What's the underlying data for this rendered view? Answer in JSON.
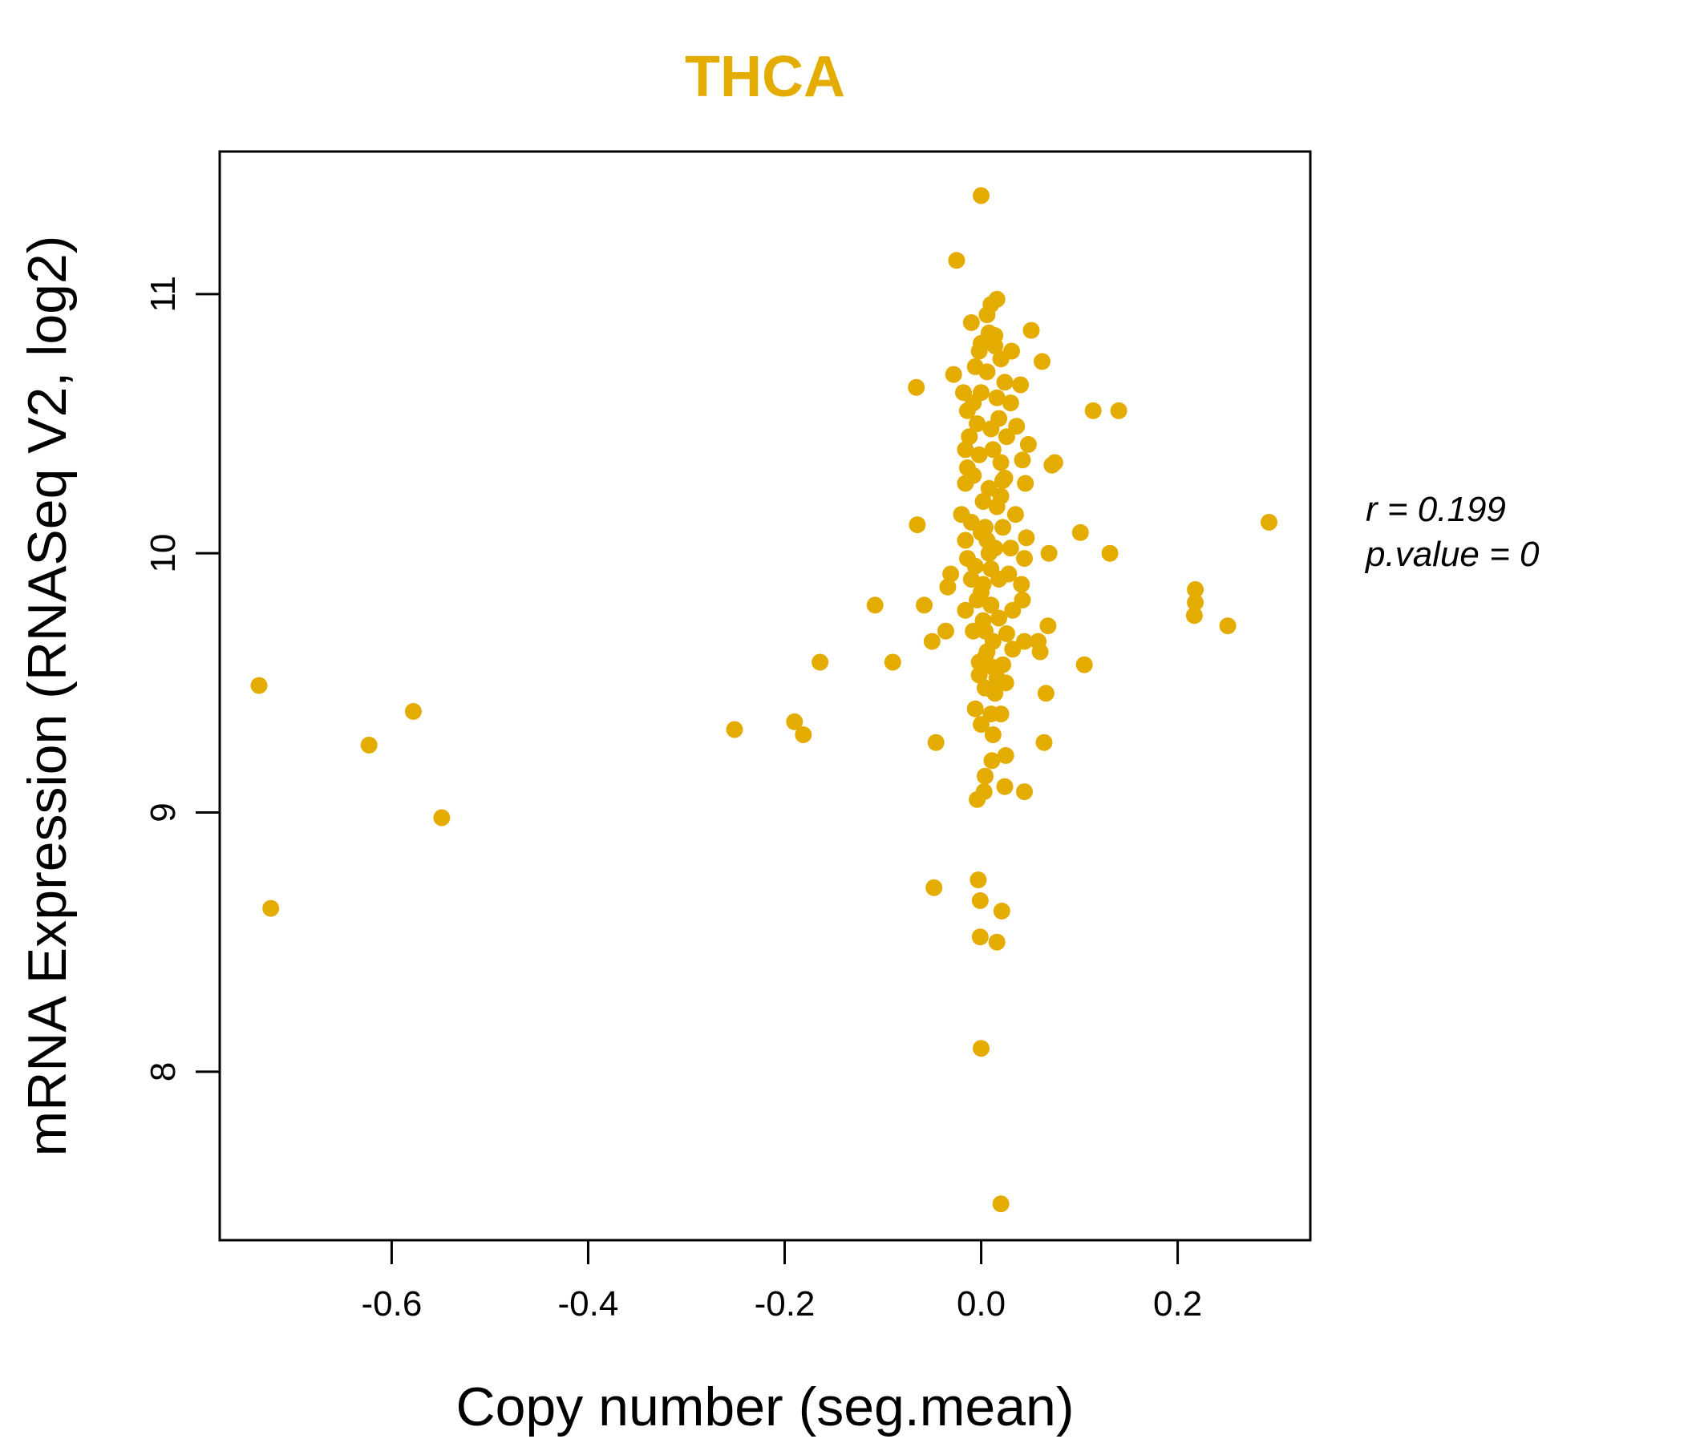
{
  "colors": {
    "accent": "#E5AC00",
    "axis": "#000000",
    "background": "#ffffff"
  },
  "chart_data": {
    "type": "scatter",
    "title": "THCA",
    "xlabel": "Copy number (seg.mean)",
    "ylabel": "mRNA Expression (RNASeq V2, log2)",
    "xlim": [
      -0.775,
      0.335
    ],
    "ylim": [
      7.35,
      11.55
    ],
    "xticks": [
      -0.6,
      -0.4,
      -0.2,
      0.0,
      0.2
    ],
    "xtick_labels": [
      "-0.6",
      "-0.4",
      "-0.2",
      "0.0",
      "0.2"
    ],
    "yticks": [
      8,
      9,
      10,
      11
    ],
    "ytick_labels": [
      "8",
      "9",
      "10",
      "11"
    ],
    "stats": {
      "r_label": "r = 0.199",
      "p_label": "p.value = 0"
    },
    "points": [
      {
        "x": -0.735,
        "y": 9.49
      },
      {
        "x": -0.723,
        "y": 8.63
      },
      {
        "x": -0.623,
        "y": 9.26
      },
      {
        "x": -0.578,
        "y": 9.39
      },
      {
        "x": -0.549,
        "y": 8.98
      },
      {
        "x": -0.251,
        "y": 9.32
      },
      {
        "x": -0.19,
        "y": 9.35
      },
      {
        "x": -0.181,
        "y": 9.3
      },
      {
        "x": -0.164,
        "y": 9.58
      },
      {
        "x": -0.108,
        "y": 9.8
      },
      {
        "x": -0.09,
        "y": 9.58
      },
      {
        "x": -0.066,
        "y": 10.64
      },
      {
        "x": -0.065,
        "y": 10.11
      },
      {
        "x": -0.058,
        "y": 9.8
      },
      {
        "x": -0.05,
        "y": 9.66
      },
      {
        "x": -0.048,
        "y": 8.71
      },
      {
        "x": -0.046,
        "y": 9.27
      },
      {
        "x": -0.036,
        "y": 9.7
      },
      {
        "x": -0.034,
        "y": 9.87
      },
      {
        "x": -0.031,
        "y": 9.92
      },
      {
        "x": -0.028,
        "y": 10.69
      },
      {
        "x": -0.025,
        "y": 11.13
      },
      {
        "x": 0.0,
        "y": 11.38
      },
      {
        "x": -0.003,
        "y": 8.74
      },
      {
        "x": -0.001,
        "y": 8.66
      },
      {
        "x": -0.001,
        "y": 8.52
      },
      {
        "x": 0.0,
        "y": 8.09
      },
      {
        "x": 0.016,
        "y": 8.5
      },
      {
        "x": 0.021,
        "y": 8.62
      },
      {
        "x": 0.02,
        "y": 7.49
      },
      {
        "x": -0.004,
        "y": 9.05
      },
      {
        "x": 0.003,
        "y": 9.08
      },
      {
        "x": 0.004,
        "y": 9.14
      },
      {
        "x": 0.011,
        "y": 9.2
      },
      {
        "x": 0.024,
        "y": 9.1
      },
      {
        "x": 0.025,
        "y": 9.22
      },
      {
        "x": 0.044,
        "y": 9.08
      },
      {
        "x": 0.064,
        "y": 9.27
      },
      {
        "x": 0.066,
        "y": 9.46
      },
      {
        "x": 0.06,
        "y": 9.62
      },
      {
        "x": 0.058,
        "y": 9.66
      },
      {
        "x": 0.068,
        "y": 9.72
      },
      {
        "x": 0.069,
        "y": 10.0
      },
      {
        "x": 0.072,
        "y": 10.34
      },
      {
        "x": 0.075,
        "y": 10.35
      },
      {
        "x": 0.101,
        "y": 10.08
      },
      {
        "x": 0.105,
        "y": 9.57
      },
      {
        "x": 0.114,
        "y": 10.55
      },
      {
        "x": 0.131,
        "y": 10.0
      },
      {
        "x": 0.14,
        "y": 10.55
      },
      {
        "x": 0.218,
        "y": 9.86
      },
      {
        "x": 0.218,
        "y": 9.81
      },
      {
        "x": 0.217,
        "y": 9.76
      },
      {
        "x": 0.251,
        "y": 9.72
      },
      {
        "x": 0.293,
        "y": 10.12
      },
      {
        "x": 0.051,
        "y": 10.86
      },
      {
        "x": 0.062,
        "y": 10.74
      },
      {
        "x": 0.031,
        "y": 10.78
      },
      {
        "x": 0.016,
        "y": 10.98
      },
      {
        "x": 0.01,
        "y": 10.96
      },
      {
        "x": 0.006,
        "y": 10.92
      },
      {
        "x": -0.01,
        "y": 10.89
      },
      {
        "x": 0.014,
        "y": 10.84
      },
      {
        "x": 0.0,
        "y": 10.81
      },
      {
        "x": -0.002,
        "y": 10.78
      },
      {
        "x": 0.02,
        "y": 10.75
      },
      {
        "x": -0.006,
        "y": 10.72
      },
      {
        "x": 0.04,
        "y": 10.65
      },
      {
        "x": -0.018,
        "y": 10.62
      },
      {
        "x": 0.03,
        "y": 10.58
      },
      {
        "x": -0.014,
        "y": 10.55
      },
      {
        "x": 0.036,
        "y": 10.49
      },
      {
        "x": -0.012,
        "y": 10.45
      },
      {
        "x": 0.048,
        "y": 10.42
      },
      {
        "x": -0.016,
        "y": 10.4
      },
      {
        "x": 0.042,
        "y": 10.36
      },
      {
        "x": -0.014,
        "y": 10.33
      },
      {
        "x": 0.024,
        "y": 10.29
      },
      {
        "x": -0.016,
        "y": 10.27
      },
      {
        "x": 0.045,
        "y": 10.27
      },
      {
        "x": 0.02,
        "y": 10.22
      },
      {
        "x": -0.02,
        "y": 10.15
      },
      {
        "x": 0.035,
        "y": 10.15
      },
      {
        "x": 0.004,
        "y": 10.1
      },
      {
        "x": 0.046,
        "y": 10.06
      },
      {
        "x": -0.016,
        "y": 10.05
      },
      {
        "x": 0.03,
        "y": 10.02
      },
      {
        "x": -0.014,
        "y": 9.98
      },
      {
        "x": 0.044,
        "y": 9.98
      },
      {
        "x": 0.01,
        "y": 9.94
      },
      {
        "x": -0.01,
        "y": 9.9
      },
      {
        "x": 0.041,
        "y": 9.88
      },
      {
        "x": 0.0,
        "y": 9.85
      },
      {
        "x": 0.042,
        "y": 9.82
      },
      {
        "x": -0.016,
        "y": 9.78
      },
      {
        "x": 0.032,
        "y": 9.78
      },
      {
        "x": 0.002,
        "y": 9.74
      },
      {
        "x": -0.008,
        "y": 9.7
      },
      {
        "x": 0.026,
        "y": 9.69
      },
      {
        "x": 0.044,
        "y": 9.66
      },
      {
        "x": 0.006,
        "y": 9.62
      },
      {
        "x": 0.032,
        "y": 9.63
      },
      {
        "x": -0.002,
        "y": 9.58
      },
      {
        "x": 0.022,
        "y": 9.57
      },
      {
        "x": -0.002,
        "y": 9.53
      },
      {
        "x": 0.016,
        "y": 9.52
      },
      {
        "x": 0.025,
        "y": 9.5
      },
      {
        "x": 0.004,
        "y": 9.48
      },
      {
        "x": 0.014,
        "y": 9.46
      },
      {
        "x": -0.006,
        "y": 9.4
      },
      {
        "x": 0.01,
        "y": 9.38
      },
      {
        "x": 0.02,
        "y": 9.38
      },
      {
        "x": 0.0,
        "y": 9.34
      },
      {
        "x": 0.012,
        "y": 9.3
      },
      {
        "x": 0.008,
        "y": 10.0
      },
      {
        "x": 0.012,
        "y": 10.4
      },
      {
        "x": 0.016,
        "y": 10.6
      },
      {
        "x": 0.002,
        "y": 10.2
      },
      {
        "x": -0.004,
        "y": 10.5
      },
      {
        "x": 0.018,
        "y": 9.9
      },
      {
        "x": 0.006,
        "y": 10.7
      },
      {
        "x": 0.022,
        "y": 10.1
      },
      {
        "x": -0.008,
        "y": 10.3
      },
      {
        "x": 0.01,
        "y": 9.8
      },
      {
        "x": 0.004,
        "y": 9.7
      },
      {
        "x": 0.014,
        "y": 10.8
      },
      {
        "x": -0.006,
        "y": 9.95
      },
      {
        "x": 0.026,
        "y": 10.45
      },
      {
        "x": 0.0,
        "y": 10.62
      },
      {
        "x": 0.008,
        "y": 10.25
      },
      {
        "x": 0.018,
        "y": 10.52
      },
      {
        "x": -0.01,
        "y": 10.12
      },
      {
        "x": 0.012,
        "y": 9.66
      },
      {
        "x": 0.002,
        "y": 9.88
      },
      {
        "x": 0.02,
        "y": 10.35
      },
      {
        "x": 0.006,
        "y": 10.05
      },
      {
        "x": -0.004,
        "y": 9.82
      },
      {
        "x": 0.016,
        "y": 10.18
      },
      {
        "x": 0.028,
        "y": 9.92
      },
      {
        "x": 0.01,
        "y": 10.48
      },
      {
        "x": -0.002,
        "y": 10.38
      },
      {
        "x": 0.024,
        "y": 10.66
      },
      {
        "x": 0.004,
        "y": 9.6
      },
      {
        "x": 0.014,
        "y": 10.02
      },
      {
        "x": 0.018,
        "y": 9.75
      },
      {
        "x": -0.008,
        "y": 10.58
      },
      {
        "x": 0.008,
        "y": 10.85
      },
      {
        "x": 0.022,
        "y": 10.28
      },
      {
        "x": 0.0,
        "y": 10.08
      },
      {
        "x": 0.012,
        "y": 9.56
      }
    ]
  }
}
